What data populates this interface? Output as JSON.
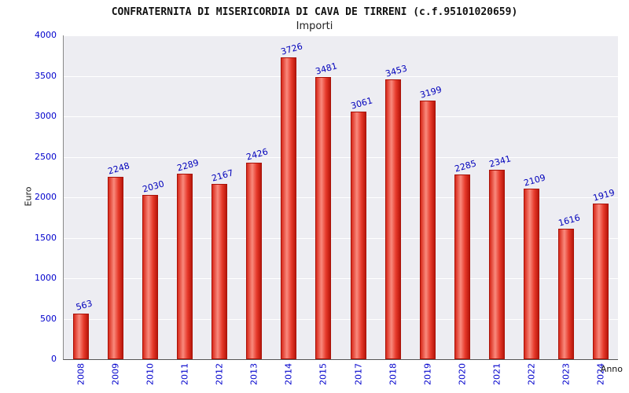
{
  "header": {
    "title": "CONFRATERNITA DI MISERICORDIA DI CAVA DE TIRRENI (c.f.95101020659)",
    "subtitle": "Importi"
  },
  "chart_data": {
    "type": "bar",
    "title": "CONFRATERNITA DI MISERICORDIA DI CAVA DE TIRRENI (c.f.95101020659)",
    "subtitle": "Importi",
    "xlabel": "Anno",
    "ylabel": "Euro",
    "categories": [
      "2008",
      "2009",
      "2010",
      "2011",
      "2012",
      "2013",
      "2014",
      "2015",
      "2017",
      "2018",
      "2019",
      "2020",
      "2021",
      "2022",
      "2023",
      "2024"
    ],
    "values": [
      563,
      2248,
      2030,
      2289,
      2167,
      2426,
      3726,
      3481,
      3061,
      3453,
      3199,
      2285,
      2341,
      2109,
      1616,
      1919
    ],
    "ylim": [
      0,
      4000
    ],
    "ytick_step": 500,
    "yticks": [
      0,
      500,
      1000,
      1500,
      2000,
      2500,
      3000,
      3500,
      4000
    ],
    "grid": true,
    "legend": "none",
    "bar_color": "#e32b1c",
    "value_label_color": "#0000bb",
    "tick_label_color": "#0000cc",
    "plot_background": "#ededf2"
  }
}
